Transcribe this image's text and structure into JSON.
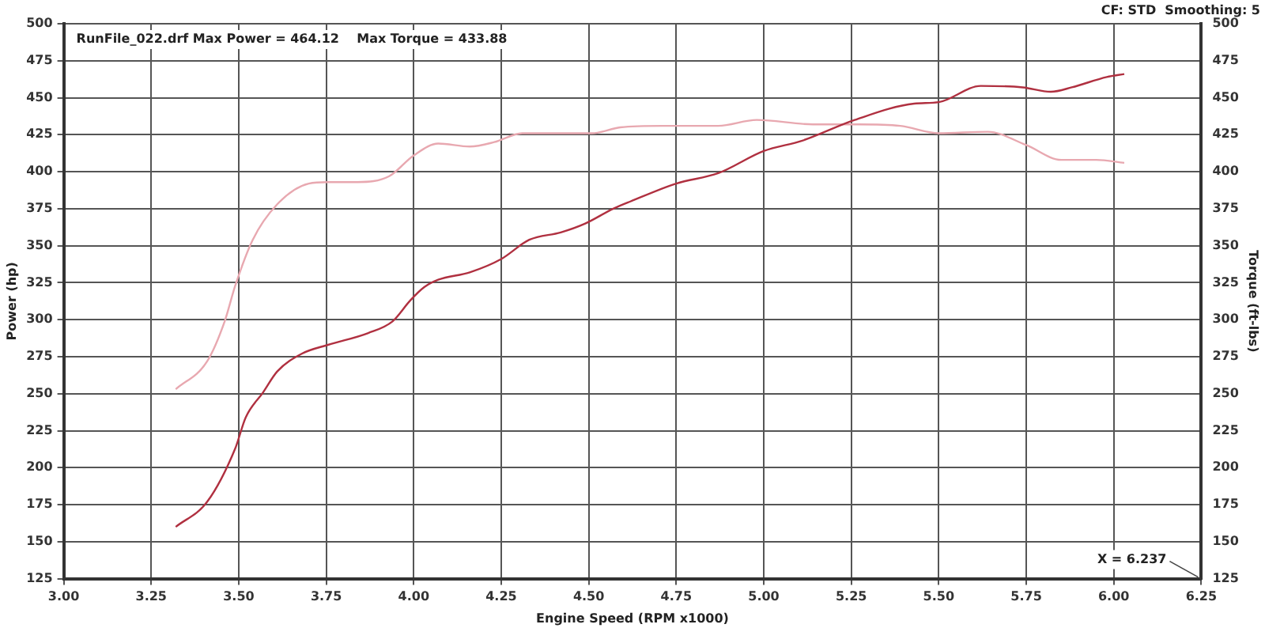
{
  "chart_data": {
    "type": "line",
    "xlabel": "Engine Speed (RPM x1000)",
    "ylabel": "Power (hp)",
    "y2label": "Torque (ft-lbs)",
    "annotations": [
      "RunFile_022.drf Max Power = 464.12    Max Torque = 433.88",
      "CF: STD  Smoothing: 5",
      "X = 6.237"
    ],
    "xlim": [
      3,
      6.25
    ],
    "xticks": [
      {
        "value": 3,
        "label": "3.00"
      },
      {
        "value": 3.25,
        "label": "3.25"
      },
      {
        "value": 3.5,
        "label": "3.50"
      },
      {
        "value": 3.75,
        "label": "3.75"
      },
      {
        "value": 4,
        "label": "4.00"
      },
      {
        "value": 4.25,
        "label": "4.25"
      },
      {
        "value": 4.5,
        "label": "4.50"
      },
      {
        "value": 4.75,
        "label": "4.75"
      },
      {
        "value": 5,
        "label": "5.00"
      },
      {
        "value": 5.25,
        "label": "5.25"
      },
      {
        "value": 5.5,
        "label": "5.50"
      },
      {
        "value": 5.75,
        "label": "5.75"
      },
      {
        "value": 6,
        "label": "6.00"
      },
      {
        "value": 6.25,
        "label": "6.25"
      }
    ],
    "ylim": [
      125,
      500
    ],
    "yticks": [
      125,
      150,
      175,
      200,
      225,
      250,
      275,
      300,
      325,
      350,
      375,
      400,
      425,
      450,
      475,
      500
    ],
    "y2lim": [
      125,
      500
    ],
    "y2ticks": [
      125,
      150,
      175,
      200,
      225,
      250,
      275,
      300,
      325,
      350,
      375,
      400,
      425,
      450,
      475,
      500
    ],
    "grid": true,
    "legend": false,
    "marker": "none",
    "line_style": "solid",
    "series": [
      {
        "color": "#b03040",
        "x": [
          3.32,
          3.41,
          3.49,
          3.52,
          3.57,
          3.61,
          3.68,
          3.755,
          3.87,
          3.94,
          3.99,
          4.03,
          4.07,
          4.16,
          4.25,
          4.33,
          4.42,
          4.49,
          4.57,
          4.62,
          4.75,
          4.87,
          5.0,
          5.11,
          5.26,
          5.43,
          5.5,
          5.62,
          5.74,
          5.82,
          5.88,
          5.98,
          6.03
        ],
        "values": [
          160,
          177,
          213,
          234,
          251,
          265,
          277,
          283,
          291,
          299,
          313,
          322,
          327,
          332,
          341,
          354,
          359,
          365,
          375,
          380,
          392,
          399,
          414,
          421,
          435,
          446,
          447,
          458,
          457,
          454,
          457,
          464,
          466
        ]
      },
      {
        "color": "#e8a8b0",
        "axis": "y2",
        "x": [
          3.32,
          3.41,
          3.46,
          3.49,
          3.54,
          3.61,
          3.7,
          3.755,
          3.84,
          3.93,
          4.0,
          4.07,
          4.16,
          4.23,
          4.31,
          4.42,
          4.51,
          4.59,
          4.71,
          4.87,
          4.98,
          5.14,
          5.27,
          5.39,
          5.5,
          5.64,
          5.75,
          5.85,
          5.95,
          6.03
        ],
        "values": [
          253,
          272,
          299,
          323,
          354,
          378,
          392,
          393,
          393,
          397,
          411,
          419,
          417,
          420,
          426,
          426,
          426,
          430,
          431,
          431,
          435,
          432,
          432,
          431,
          426,
          427,
          418,
          408,
          408,
          406
        ]
      }
    ]
  }
}
